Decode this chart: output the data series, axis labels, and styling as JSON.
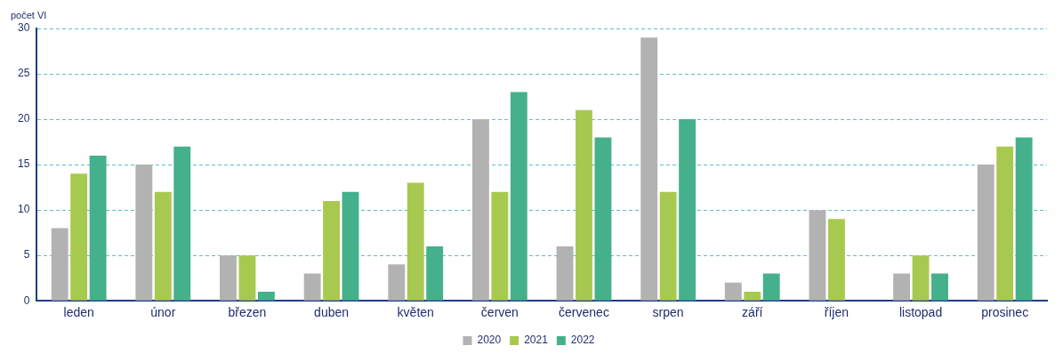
{
  "chart_data": {
    "type": "bar",
    "ylabel": "počet VI",
    "categories": [
      "leden",
      "únor",
      "březen",
      "duben",
      "květen",
      "červen",
      "červenec",
      "srpen",
      "září",
      "říjen",
      "listopad",
      "prosinec"
    ],
    "series": [
      {
        "name": "2020",
        "color": "#b2b2b2",
        "values": [
          8,
          15,
          5,
          3,
          4,
          20,
          6,
          29,
          2,
          10,
          3,
          15
        ]
      },
      {
        "name": "2021",
        "color": "#a8c94f",
        "values": [
          14,
          12,
          5,
          11,
          13,
          12,
          21,
          12,
          1,
          9,
          5,
          17
        ]
      },
      {
        "name": "2022",
        "color": "#45b08c",
        "values": [
          16,
          17,
          1,
          12,
          6,
          23,
          18,
          20,
          3,
          0,
          3,
          18
        ]
      }
    ],
    "ylim": [
      0,
      30
    ],
    "yticks": [
      0,
      5,
      10,
      15,
      20,
      25,
      30
    ],
    "grid": "y",
    "legend": "bottom"
  }
}
